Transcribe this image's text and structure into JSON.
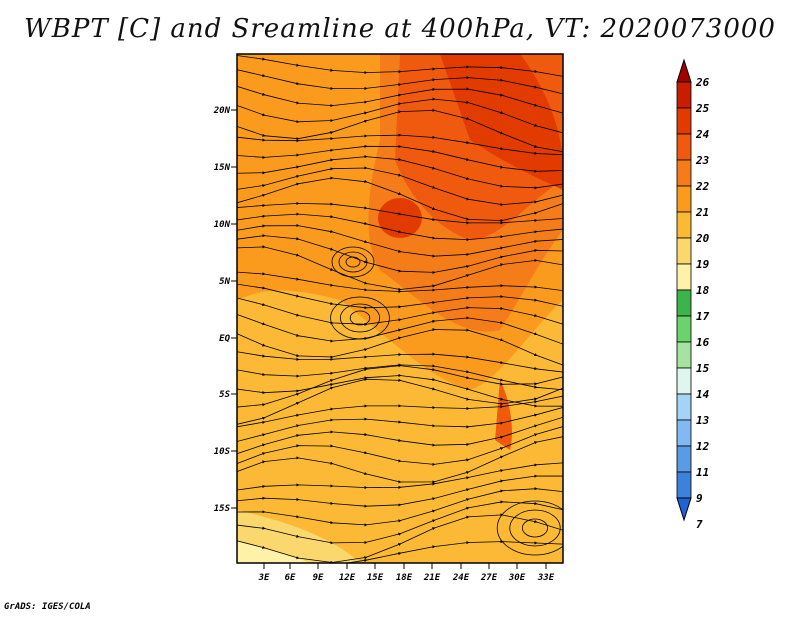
{
  "title": "WBPT [C] and Sreamline at 400hPa, VT: 2020073000",
  "credit": "GrADS: IGES/COLA",
  "map": {
    "lat_ticks": [
      "20N",
      "15N",
      "10N",
      "5N",
      "EQ",
      "5S",
      "10S",
      "15S"
    ],
    "lon_ticks": [
      "3E",
      "6E",
      "9E",
      "12E",
      "15E",
      "18E",
      "21E",
      "24E",
      "27E",
      "30E",
      "33E"
    ],
    "extent": {
      "lon_min": 0,
      "lon_max": 35,
      "lat_min": -20,
      "lat_max": 24.5
    },
    "field": "WBPT",
    "overlay": "Streamline"
  },
  "colorbar": {
    "labels": [
      "26",
      "25",
      "24",
      "23",
      "22",
      "21",
      "20",
      "19",
      "18",
      "17",
      "16",
      "15",
      "14",
      "13",
      "12",
      "11",
      "9",
      "7"
    ],
    "colors": [
      "#a50000",
      "#c81e00",
      "#e13b00",
      "#f05a0f",
      "#f57d19",
      "#fa9b1e",
      "#fbb935",
      "#fbd86e",
      "#fff2a8",
      "#3cb44b",
      "#6bd36b",
      "#a5e4a0",
      "#dff6ee",
      "#a5d3f5",
      "#82b9f0",
      "#5a9be6",
      "#3c82dc",
      "#1e64d2"
    ]
  }
}
